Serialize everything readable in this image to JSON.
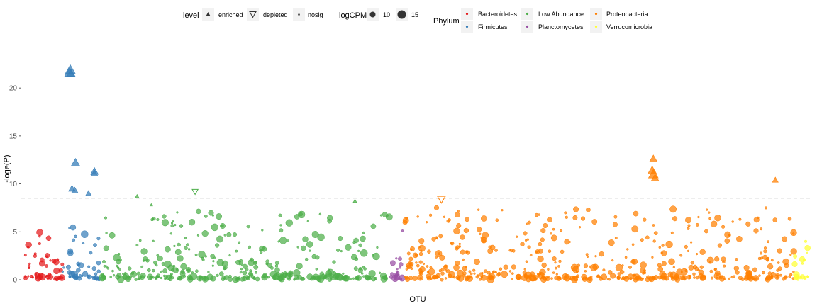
{
  "chart_data": {
    "type": "scatter",
    "xlabel": "OTU",
    "ylabel": "-loge(P)",
    "ylim": [
      0,
      24
    ],
    "yticks": [
      0,
      5,
      10,
      15,
      20
    ],
    "threshold": 8.5,
    "grid": false,
    "legend_position": "top",
    "legends": {
      "level": {
        "title": "level",
        "entries": [
          {
            "label": "enriched",
            "shape": "triangle-up-filled"
          },
          {
            "label": "depleted",
            "shape": "triangle-down-open"
          },
          {
            "label": "nosig",
            "shape": "small-dot"
          }
        ]
      },
      "logCPM": {
        "title": "logCPM",
        "entries": [
          {
            "label": "10",
            "size": 10
          },
          {
            "label": "15",
            "size": 15
          }
        ]
      },
      "phylum": {
        "title": "Phylum",
        "entries": [
          {
            "label": "Bacteroidetes",
            "color": "#e41a1c"
          },
          {
            "label": "Firmicutes",
            "color": "#377eb8"
          },
          {
            "label": "Low Abundance",
            "color": "#4daf4a"
          },
          {
            "label": "Planctomycetes",
            "color": "#984ea3"
          },
          {
            "label": "Proteobacteria",
            "color": "#ff7f00"
          },
          {
            "label": "Verrucomicrobia",
            "color": "#ffff33"
          }
        ]
      }
    },
    "groups": [
      {
        "phylum": "Bacteroidetes",
        "color": "#e41a1c",
        "count": 160,
        "x_range": [
          1,
          160
        ],
        "y_typical_max": 5.5
      },
      {
        "phylum": "Firmicutes",
        "color": "#377eb8",
        "count": 160,
        "x_range": [
          161,
          320
        ],
        "y_typical_max": 7.5
      },
      {
        "phylum": "Low Abundance",
        "color": "#4daf4a",
        "count": 1220,
        "x_range": [
          321,
          1540
        ],
        "y_typical_max": 7
      },
      {
        "phylum": "Planctomycetes",
        "color": "#984ea3",
        "count": 60,
        "x_range": [
          1541,
          1600
        ],
        "y_typical_max": 7
      },
      {
        "phylum": "Proteobacteria",
        "color": "#ff7f00",
        "count": 1650,
        "x_range": [
          1601,
          3250
        ],
        "y_typical_max": 7.5
      },
      {
        "phylum": "Verrucomicrobia",
        "color": "#ffff33",
        "count": 60,
        "x_range": [
          3251,
          3310
        ],
        "y_typical_max": 4
      }
    ],
    "highlighted_points": [
      {
        "phylum": "Firmicutes",
        "x": 190,
        "y": 21.6,
        "level": "enriched",
        "logCPM": 15
      },
      {
        "phylum": "Firmicutes",
        "x": 193,
        "y": 21.9,
        "level": "enriched",
        "logCPM": 15
      },
      {
        "phylum": "Firmicutes",
        "x": 196,
        "y": 21.5,
        "level": "enriched",
        "logCPM": 14
      },
      {
        "phylum": "Firmicutes",
        "x": 215,
        "y": 12.2,
        "level": "enriched",
        "logCPM": 14
      },
      {
        "phylum": "Firmicutes",
        "x": 295,
        "y": 11.3,
        "level": "enriched",
        "logCPM": 13
      },
      {
        "phylum": "Firmicutes",
        "x": 295,
        "y": 11.1,
        "level": "enriched",
        "logCPM": 12
      },
      {
        "phylum": "Firmicutes",
        "x": 200,
        "y": 9.5,
        "level": "enriched",
        "logCPM": 12
      },
      {
        "phylum": "Firmicutes",
        "x": 212,
        "y": 9.3,
        "level": "enriched",
        "logCPM": 12
      },
      {
        "phylum": "Firmicutes",
        "x": 270,
        "y": 9.0,
        "level": "enriched",
        "logCPM": 11
      },
      {
        "phylum": "Low Abundance",
        "x": 475,
        "y": 8.7,
        "level": "enriched",
        "logCPM": 9
      },
      {
        "phylum": "Low Abundance",
        "x": 535,
        "y": 7.8,
        "level": "enriched",
        "logCPM": 8
      },
      {
        "phylum": "Low Abundance",
        "x": 720,
        "y": 9.2,
        "level": "depleted",
        "logCPM": 11
      },
      {
        "phylum": "Low Abundance",
        "x": 1395,
        "y": 8.2,
        "level": "enriched",
        "logCPM": 9
      },
      {
        "phylum": "Proteobacteria",
        "x": 1760,
        "y": 8.4,
        "level": "depleted",
        "logCPM": 13
      },
      {
        "phylum": "Proteobacteria",
        "x": 2655,
        "y": 12.6,
        "level": "enriched",
        "logCPM": 13
      },
      {
        "phylum": "Proteobacteria",
        "x": 2650,
        "y": 11.4,
        "level": "enriched",
        "logCPM": 14
      },
      {
        "phylum": "Proteobacteria",
        "x": 2655,
        "y": 11.0,
        "level": "enriched",
        "logCPM": 15
      },
      {
        "phylum": "Proteobacteria",
        "x": 2662,
        "y": 10.6,
        "level": "enriched",
        "logCPM": 13
      },
      {
        "phylum": "Proteobacteria",
        "x": 3170,
        "y": 10.4,
        "level": "enriched",
        "logCPM": 11
      }
    ]
  }
}
